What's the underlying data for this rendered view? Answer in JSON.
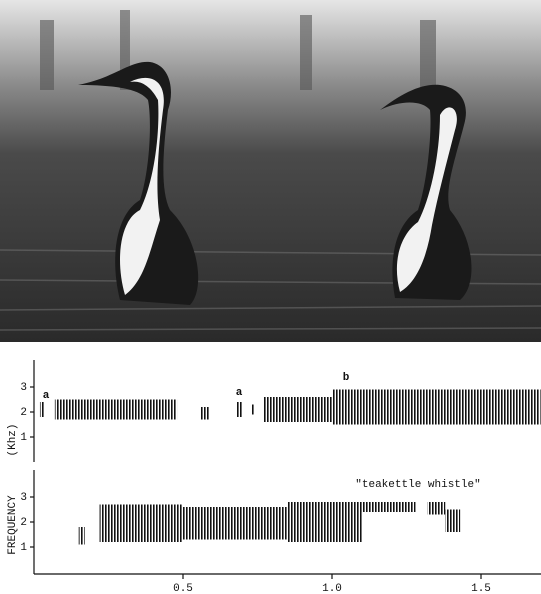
{
  "chart_data": [
    {
      "type": "spectrogram",
      "ylabel": "(Khz)",
      "annotations": [
        "a",
        "a",
        "b"
      ],
      "xlim": [
        0,
        1.7
      ],
      "ylim": [
        0,
        4
      ],
      "yticks": [
        1,
        2,
        3
      ],
      "segments": [
        {
          "x": [
            0.02,
            0.035
          ],
          "y": [
            1.8,
            2.4
          ]
        },
        {
          "x": [
            0.07,
            0.48
          ],
          "y": [
            1.7,
            2.5
          ]
        },
        {
          "x": [
            0.56,
            0.59
          ],
          "y": [
            1.7,
            2.2
          ]
        },
        {
          "x": [
            0.68,
            0.7
          ],
          "y": [
            1.8,
            2.4
          ]
        },
        {
          "x": [
            0.73,
            0.74
          ],
          "y": [
            1.9,
            2.3
          ]
        },
        {
          "x": [
            0.77,
            1.0
          ],
          "y": [
            1.6,
            2.6
          ]
        },
        {
          "x": [
            1.0,
            1.7
          ],
          "y": [
            1.5,
            2.9
          ]
        }
      ]
    },
    {
      "type": "spectrogram",
      "ylabel": "FREQUENCY",
      "annotations": [
        "\"teakettle whistle\""
      ],
      "xlim": [
        0,
        1.7
      ],
      "ylim": [
        0,
        4
      ],
      "yticks": [
        1,
        2,
        3
      ],
      "xticks": [
        0.5,
        {
          "value": 1,
          "label": "1.0"
        },
        1.5
      ],
      "segments": [
        {
          "x": [
            0.15,
            0.17
          ],
          "y": [
            1.1,
            1.8
          ]
        },
        {
          "x": [
            0.22,
            0.5
          ],
          "y": [
            1.2,
            2.7
          ]
        },
        {
          "x": [
            0.5,
            0.85
          ],
          "y": [
            1.3,
            2.6
          ]
        },
        {
          "x": [
            0.85,
            1.28
          ],
          "y": [
            2.4,
            2.8
          ]
        },
        {
          "x": [
            0.85,
            1.1
          ],
          "y": [
            1.2,
            2.4
          ]
        },
        {
          "x": [
            1.32,
            1.38
          ],
          "y": [
            2.3,
            2.8
          ]
        },
        {
          "x": [
            1.38,
            1.43
          ],
          "y": [
            1.6,
            2.5
          ]
        }
      ]
    }
  ]
}
